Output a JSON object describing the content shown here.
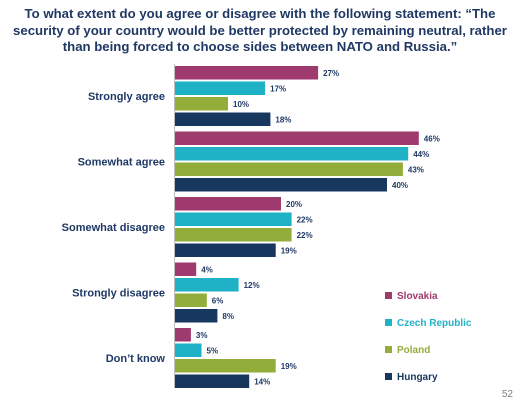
{
  "title": "To what extent do you agree or disagree with the following statement: “The security of your country would be better protected by remaining neutral, rather than being forced to choose sides between NATO and Russia.”",
  "page_number": "52",
  "chart_data": {
    "type": "bar",
    "orientation": "horizontal",
    "categories": [
      "Strongly agree",
      "Somewhat agree",
      "Somewhat disagree",
      "Strongly disagree",
      "Don’t know"
    ],
    "series": [
      {
        "name": "Slovakia",
        "color": "#9e3a6e",
        "values": [
          27,
          46,
          20,
          4,
          3
        ]
      },
      {
        "name": "Czech Republic",
        "color": "#1fb2c6",
        "values": [
          17,
          44,
          22,
          12,
          5
        ]
      },
      {
        "name": "Poland",
        "color": "#93ad3b",
        "values": [
          10,
          43,
          22,
          6,
          19
        ]
      },
      {
        "name": "Hungary",
        "color": "#17375e",
        "values": [
          18,
          40,
          19,
          8,
          14
        ]
      }
    ],
    "value_suffix": "%",
    "xlim": [
      0,
      50
    ],
    "grid": false,
    "legend_position": "bottom-right"
  }
}
